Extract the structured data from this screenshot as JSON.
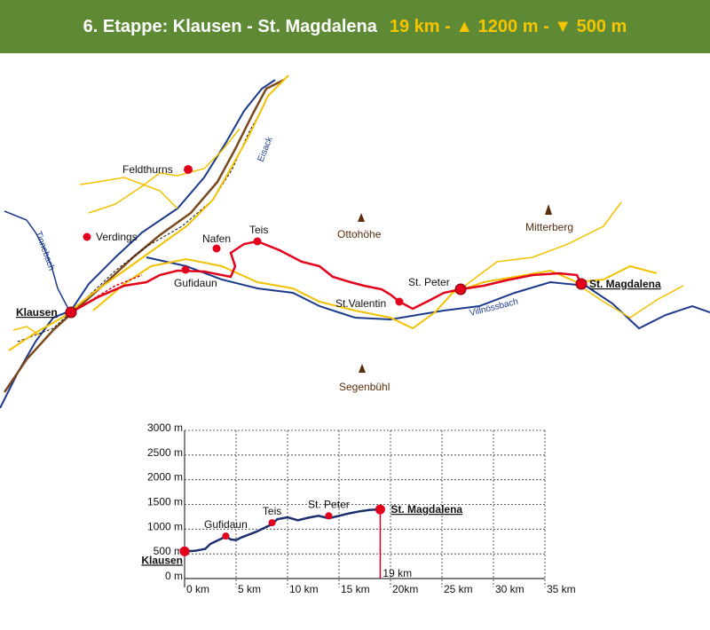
{
  "header": {
    "title": "6. Etappe: Klausen - St. Magdalena",
    "stats": "19 km - ▲ 1200 m - ▼ 500 m",
    "title_color": "#ffffff",
    "stats_color": "#f6c400",
    "bg_color": "#5e8a36"
  },
  "map": {
    "places": [
      {
        "name": "Klausen",
        "type": "start"
      },
      {
        "name": "Gufidaun",
        "type": "village"
      },
      {
        "name": "Teis",
        "type": "village"
      },
      {
        "name": "Nafen",
        "type": "village"
      },
      {
        "name": "Verdings",
        "type": "village"
      },
      {
        "name": "Feldthurns",
        "type": "village"
      },
      {
        "name": "St.Valentin",
        "type": "village"
      },
      {
        "name": "St. Peter",
        "type": "village"
      },
      {
        "name": "St. Magdalena",
        "type": "end"
      }
    ],
    "peaks": [
      "Ottohöhe",
      "Mitterberg",
      "Segenbühl"
    ],
    "rivers": [
      "Eisack",
      "Tinnebach",
      "Villnössbach"
    ],
    "colors": {
      "route": "#e3001b",
      "road": "#f2c200",
      "river": "#1c3a8c",
      "railway": "#7a4a1e"
    }
  },
  "chart_data": {
    "type": "line",
    "title": "",
    "xlabel": "",
    "ylabel": "",
    "xlim": [
      0,
      35
    ],
    "ylim": [
      0,
      3000
    ],
    "x_ticks": [
      0,
      5,
      10,
      15,
      20,
      25,
      30,
      35
    ],
    "x_tick_labels": [
      "0 km",
      "5 km",
      "10 km",
      "15 km",
      "20km",
      "25 km",
      "30 km",
      "35 km"
    ],
    "y_ticks": [
      0,
      500,
      1000,
      1500,
      2000,
      2500,
      3000
    ],
    "y_tick_labels": [
      "0 m",
      "500 m",
      "1000 m",
      "1500 m",
      "2000 m",
      "2500 m",
      "3000 m"
    ],
    "series": [
      {
        "x": [
          0,
          1,
          2,
          2.5,
          3,
          3.5,
          4,
          4.5,
          5,
          5.5,
          6,
          7,
          8,
          8.5,
          9,
          10,
          11,
          12,
          13,
          14,
          15,
          16,
          17,
          18,
          19
        ],
        "y": [
          550,
          560,
          600,
          700,
          750,
          800,
          850,
          790,
          780,
          830,
          870,
          950,
          1050,
          1100,
          1200,
          1240,
          1180,
          1230,
          1270,
          1220,
          1270,
          1320,
          1360,
          1390,
          1400
        ]
      }
    ],
    "points": [
      {
        "label": "Klausen",
        "x": 0,
        "y": 550
      },
      {
        "label": "Gufidaun",
        "x": 4,
        "y": 860
      },
      {
        "label": "Teis",
        "x": 8.5,
        "y": 1130
      },
      {
        "label": "St. Peter",
        "x": 14,
        "y": 1270
      },
      {
        "label": "St. Magdalena",
        "x": 19,
        "y": 1400
      }
    ],
    "marker": {
      "x": 19,
      "label": "19 km"
    }
  }
}
